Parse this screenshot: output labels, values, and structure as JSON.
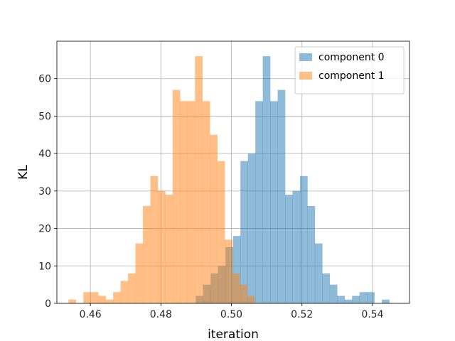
{
  "chart_data": {
    "type": "bar",
    "subtype": "overlapping-histogram",
    "title": "",
    "xlabel": "iteration",
    "ylabel": "KL",
    "xlim": [
      0.4505,
      0.5505
    ],
    "ylim": [
      0,
      70
    ],
    "xticks": [
      0.46,
      0.48,
      0.5,
      0.52,
      0.54
    ],
    "xtick_labels": [
      "0.46",
      "0.48",
      "0.50",
      "0.52",
      "0.54"
    ],
    "yticks": [
      0,
      10,
      20,
      30,
      40,
      50,
      60
    ],
    "ytick_labels": [
      "0",
      "10",
      "20",
      "30",
      "40",
      "50",
      "60"
    ],
    "grid": true,
    "legend_position": "top-right",
    "series": [
      {
        "name": "component 0",
        "color": "#1f77b4",
        "opacity": 0.5,
        "bin_start": 0.4899,
        "bin_width": 0.00211,
        "counts": [
          2,
          5,
          8,
          10,
          15,
          18,
          38,
          40,
          54,
          66,
          54,
          57,
          29,
          30,
          34,
          26,
          16,
          8,
          5,
          2,
          1,
          2,
          3,
          3,
          0,
          1
        ]
      },
      {
        "name": "component 1",
        "color": "#ff7f0e",
        "opacity": 0.5,
        "bin_start": 0.4538,
        "bin_width": 0.00211,
        "counts": [
          1,
          0,
          3,
          3,
          2,
          1,
          3,
          6,
          8,
          16,
          26,
          34,
          30,
          29,
          57,
          54,
          54,
          66,
          54,
          45,
          38,
          17,
          8,
          5,
          2
        ]
      }
    ]
  }
}
